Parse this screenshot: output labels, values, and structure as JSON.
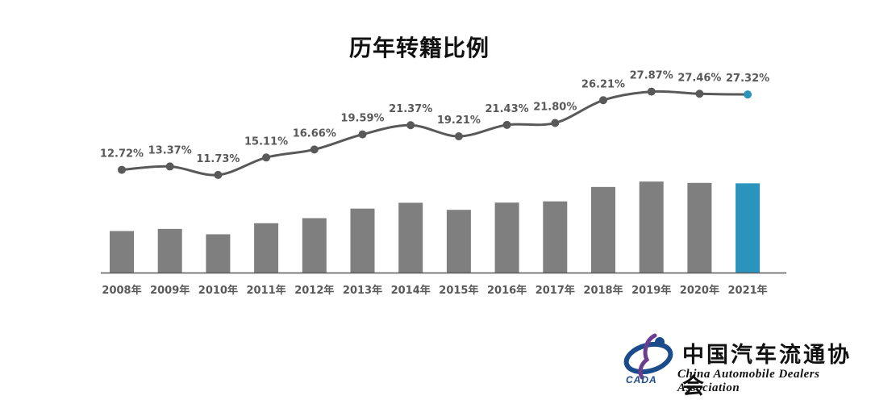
{
  "chart_data": {
    "type": "bar+line",
    "title": "历年转籍比例",
    "categories": [
      "2008年",
      "2009年",
      "2010年",
      "2011年",
      "2012年",
      "2013年",
      "2014年",
      "2015年",
      "2016年",
      "2017年",
      "2018年",
      "2019年",
      "2020年",
      "2021年"
    ],
    "series": [
      {
        "type": "line",
        "values": [
          12.72,
          13.37,
          11.73,
          15.11,
          16.66,
          19.59,
          21.37,
          19.21,
          21.43,
          21.8,
          26.21,
          27.87,
          27.46,
          27.32
        ]
      },
      {
        "type": "bar",
        "values": [
          12.72,
          13.37,
          11.73,
          15.11,
          16.66,
          19.59,
          21.37,
          19.21,
          21.43,
          21.8,
          26.21,
          27.87,
          27.46,
          27.32
        ]
      }
    ],
    "data_labels": [
      "12.72%",
      "13.37%",
      "11.73%",
      "15.11%",
      "16.66%",
      "19.59%",
      "21.37%",
      "19.21%",
      "21.43%",
      "21.80%",
      "26.21%",
      "27.87%",
      "27.46%",
      "27.32%"
    ],
    "colors": {
      "bar": "#7f7f7f",
      "bar_highlight": "#2a94bc",
      "line": "#595959",
      "point_highlight": "#2a94bc",
      "axis": "#595959",
      "text": "#595959"
    },
    "highlight_index": 13
  },
  "logo": {
    "name_cn": "中国汽车流通协会",
    "name_en": "China Automobile Dealers Association",
    "abbr": "CADA"
  }
}
